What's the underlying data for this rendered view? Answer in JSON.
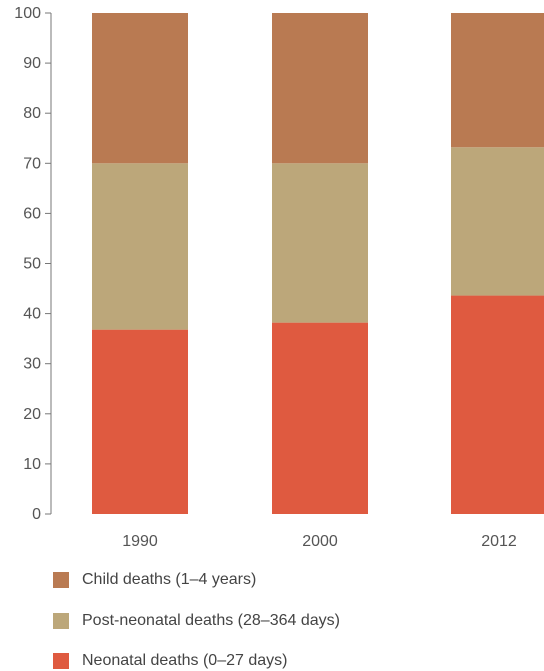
{
  "chart_data": {
    "type": "bar",
    "stacked": true,
    "categories": [
      "1990",
      "2000",
      "2012"
    ],
    "series": [
      {
        "name": "Neonatal deaths (0–27 days)",
        "values": [
          36.8,
          38.2,
          43.6
        ],
        "color": "#df5a40"
      },
      {
        "name": "Post-neonatal deaths (28–364 days)",
        "values": [
          33.2,
          31.8,
          29.6
        ],
        "color": "#bca77a"
      },
      {
        "name": "Child deaths (1–4 years)",
        "values": [
          30.0,
          30.0,
          26.8
        ],
        "color": "#b97a52"
      }
    ],
    "ylim": [
      0,
      100
    ],
    "yticks": [
      "0",
      "10",
      "20",
      "30",
      "40",
      "50",
      "60",
      "70",
      "80",
      "90",
      "100"
    ],
    "grid": false,
    "legend_position": "bottom"
  },
  "legend": {
    "items": [
      {
        "label": "Child deaths (1–4 years)",
        "color": "#b97a52"
      },
      {
        "label": "Post-neonatal deaths (28–364 days)",
        "color": "#bca77a"
      },
      {
        "label": "Neonatal deaths (0–27 days)",
        "color": "#df5a40"
      }
    ]
  }
}
